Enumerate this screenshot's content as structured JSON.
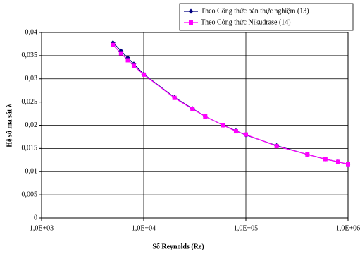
{
  "chart_data": {
    "type": "line",
    "xlabel": "Số Reynolds (Re)",
    "ylabel": "Hệ số ma sát λ",
    "xscale": "log",
    "x": [
      5000,
      6000,
      7000,
      8000,
      10000,
      20000,
      30000,
      40000,
      60000,
      80000,
      100000,
      200000,
      400000,
      600000,
      800000,
      1000000
    ],
    "series": [
      {
        "name": "Theo Công thức bán thực nghiệm (13)",
        "color": "#000080",
        "marker": "diamond",
        "values": [
          0.0378,
          0.036,
          0.0345,
          0.0332,
          0.031,
          0.026,
          0.0236,
          0.0219,
          0.02,
          0.0188,
          0.0179,
          0.0156,
          0.0137,
          0.0127,
          0.0121,
          0.0116
        ]
      },
      {
        "name": "Theo Công thức Nikudrase (14)",
        "color": "#ff00ff",
        "marker": "square",
        "values": [
          0.0373,
          0.0355,
          0.034,
          0.0328,
          0.0309,
          0.0259,
          0.0235,
          0.0219,
          0.02,
          0.0187,
          0.018,
          0.0155,
          0.0137,
          0.0127,
          0.0121,
          0.0116
        ]
      }
    ],
    "xlim": [
      1000,
      1000000
    ],
    "xticks": [
      {
        "value": 1000,
        "label": "1,0E+03"
      },
      {
        "value": 10000,
        "label": "1,0E+04"
      },
      {
        "value": 100000,
        "label": "1,0E+05"
      },
      {
        "value": 1000000,
        "label": "1,0E+06"
      }
    ],
    "ylim": [
      0,
      0.04
    ],
    "yticks": [
      0,
      {
        "value": 0.005,
        "label": "0,005"
      },
      {
        "value": 0.01,
        "label": "0,01"
      },
      {
        "value": 0.015,
        "label": "0,015"
      },
      {
        "value": 0.02,
        "label": "0,02"
      },
      {
        "value": 0.025,
        "label": "0,025"
      },
      {
        "value": 0.03,
        "label": "0,03"
      },
      {
        "value": 0.035,
        "label": "0,035"
      },
      {
        "value": 0.04,
        "label": "0,04"
      }
    ],
    "grid": true,
    "legend": "upper right"
  }
}
